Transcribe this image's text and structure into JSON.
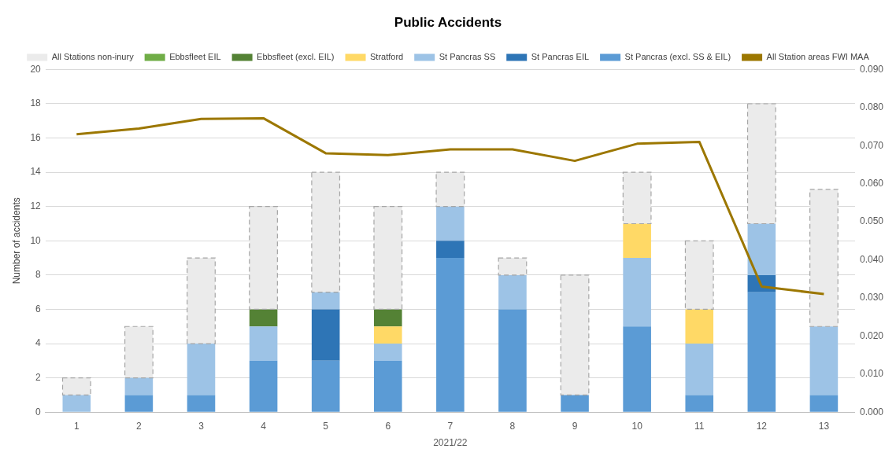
{
  "chart_data": {
    "type": "bar",
    "title": "Public Accidents",
    "xlabel": "2021/22",
    "ylabel": "Number of accidents",
    "categories": [
      "1",
      "2",
      "3",
      "4",
      "5",
      "6",
      "7",
      "8",
      "9",
      "10",
      "11",
      "12",
      "13"
    ],
    "stacked": true,
    "grid": "y",
    "legend": "top",
    "marker": "none",
    "line_style": "solid",
    "ylim": [
      0,
      20
    ],
    "yticks": [
      0,
      2,
      4,
      6,
      8,
      10,
      12,
      14,
      16,
      18,
      20
    ],
    "y2lim": [
      0,
      0.09
    ],
    "y2ticks": [
      {
        "value": 0,
        "label": "0.000"
      },
      {
        "value": 0.01,
        "label": "0.010"
      },
      {
        "value": 0.02,
        "label": "0.020"
      },
      {
        "value": 0.03,
        "label": "0.030"
      },
      {
        "value": 0.04,
        "label": "0.040"
      },
      {
        "value": 0.05,
        "label": "0.050"
      },
      {
        "value": 0.06,
        "label": "0.060"
      },
      {
        "value": 0.07,
        "label": "0.070"
      },
      {
        "value": 0.08,
        "label": "0.080"
      },
      {
        "value": 0.09,
        "label": "0.090"
      }
    ],
    "series": [
      {
        "name": "St Pancras (excl. SS & EIL)",
        "color": "#5b9bd5",
        "values": [
          0,
          1,
          1,
          3,
          3,
          3,
          9,
          6,
          1,
          5,
          1,
          7,
          1
        ]
      },
      {
        "name": "St Pancras EIL",
        "color": "#2e75b6",
        "values": [
          0,
          0,
          0,
          0,
          3,
          0,
          1,
          0,
          0,
          0,
          0,
          1,
          0
        ]
      },
      {
        "name": "St Pancras SS",
        "color": "#9dc3e6",
        "values": [
          1,
          1,
          3,
          2,
          1,
          1,
          2,
          2,
          0,
          4,
          3,
          3,
          4
        ]
      },
      {
        "name": "Stratford",
        "color": "#ffd966",
        "values": [
          0,
          0,
          0,
          0,
          0,
          1,
          0,
          0,
          0,
          2,
          2,
          0,
          0
        ]
      },
      {
        "name": "Ebbsfleet (excl. EIL)",
        "color": "#548235",
        "values": [
          0,
          0,
          0,
          1,
          0,
          1,
          0,
          0,
          0,
          0,
          0,
          0,
          0
        ]
      },
      {
        "name": "Ebbsfleet EIL",
        "color": "#70ad47",
        "values": [
          0,
          0,
          0,
          0,
          0,
          0,
          0,
          0,
          0,
          0,
          0,
          0,
          0
        ]
      },
      {
        "name": "All Stations non-inury",
        "color": "#ebebeb",
        "line_style": "dashed",
        "values": [
          1,
          3,
          5,
          6,
          7,
          6,
          2,
          1,
          7,
          3,
          4,
          7,
          8
        ]
      },
      {
        "name": "All Station areas FWI MAA",
        "type": "line",
        "axis": "y2",
        "color": "#9c7700",
        "values": [
          0.073,
          0.0745,
          0.077,
          0.0772,
          0.068,
          0.0675,
          0.069,
          0.069,
          0.066,
          0.0705,
          0.071,
          0.033,
          0.031
        ]
      }
    ]
  }
}
